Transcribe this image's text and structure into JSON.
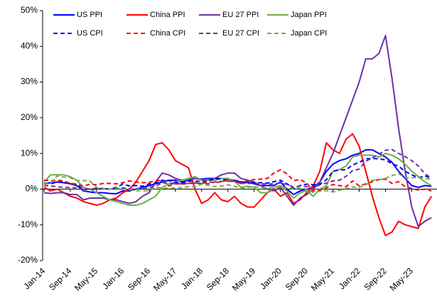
{
  "chart_data": {
    "type": "line",
    "categories": [
      "Jan-14",
      null,
      null,
      null,
      "Sep-14",
      null,
      null,
      null,
      "May-15",
      null,
      null,
      null,
      "Jan-16",
      null,
      null,
      null,
      "Sep-16",
      null,
      null,
      null,
      "May-17",
      null,
      null,
      null,
      "Jan-18",
      null,
      null,
      null,
      "Sep-18",
      null,
      null,
      null,
      "May-19",
      null,
      null,
      null,
      "Jan-20",
      null,
      null,
      null,
      "Sep-20",
      null,
      null,
      null,
      "May-21",
      null,
      null,
      null,
      "Jan-22",
      null,
      null,
      null,
      "Sep-22",
      null,
      null,
      null,
      "May-23",
      null,
      null,
      null
    ],
    "ylim": [
      -20,
      50
    ],
    "yticks": [
      {
        "value": -20,
        "label": "-20%"
      },
      {
        "value": -10,
        "label": "-10%"
      },
      {
        "value": 0,
        "label": "0%"
      },
      {
        "value": 10,
        "label": "10%"
      },
      {
        "value": 20,
        "label": "20%"
      },
      {
        "value": 30,
        "label": "30%"
      },
      {
        "value": 40,
        "label": "40%"
      },
      {
        "value": 50,
        "label": "50%"
      }
    ],
    "grid": false,
    "legend": "top",
    "series": [
      {
        "name": "US PPI",
        "color": "#0000ff",
        "dashed": false,
        "values": [
          1.5,
          1.8,
          2,
          1.8,
          1.5,
          1,
          -0.5,
          -0.8,
          -1,
          -1,
          -1.2,
          -1.3,
          -0.5,
          -0.5,
          0,
          0.5,
          1,
          1.5,
          2,
          2.5,
          2.5,
          2,
          2.5,
          3,
          2.8,
          3,
          3,
          3,
          2.8,
          2.5,
          2,
          2,
          1.5,
          1,
          1,
          1,
          2,
          0,
          -1.5,
          -0.5,
          0,
          0.5,
          2,
          5,
          7,
          8,
          8.5,
          9.5,
          10,
          11,
          11,
          10,
          9,
          7.5,
          5,
          3,
          1,
          0.5,
          1,
          0.8
        ]
      },
      {
        "name": "China PPI",
        "color": "#ff0000",
        "dashed": false,
        "values": [
          0.5,
          -0.5,
          0,
          -1,
          -2,
          -2.5,
          -3.5,
          -4,
          -4.5,
          -4,
          -3,
          -2.5,
          -1,
          0,
          2,
          5,
          8,
          12.5,
          13,
          11,
          8,
          7,
          6,
          0,
          -4,
          -3,
          -1,
          -3,
          -3.5,
          -2,
          -4,
          -5,
          -5,
          -3,
          -1,
          0,
          -2,
          -1,
          -4,
          -3,
          -1,
          1,
          5,
          13,
          11,
          10,
          14,
          15.5,
          12,
          5,
          -2,
          -8,
          -13,
          -12,
          -9,
          -10,
          -10.5,
          -11,
          -5,
          -2
        ]
      },
      {
        "name": "EU 27 PPI",
        "color": "#7030a0",
        "dashed": false,
        "values": [
          -1,
          -1.2,
          -1,
          -1,
          -1.5,
          -1.5,
          -3,
          -2.5,
          -2.5,
          -2.5,
          -3,
          -3,
          -3.5,
          -4,
          -3.5,
          -2,
          -1,
          2,
          4.5,
          4,
          3,
          2.5,
          3,
          3,
          2.5,
          2.5,
          3,
          4,
          4.5,
          4.5,
          3,
          2.5,
          2,
          1,
          0,
          -0.5,
          0.5,
          -2,
          -4.5,
          -2.5,
          -1.5,
          0,
          2,
          6,
          10,
          15,
          20,
          25,
          30,
          36.5,
          36.5,
          38,
          43,
          31,
          17,
          5,
          -5,
          -10.5,
          -9,
          -8
        ]
      },
      {
        "name": "Japan PPI",
        "color": "#70ad47",
        "dashed": false,
        "values": [
          2,
          4,
          4,
          4,
          3.5,
          2.5,
          0.5,
          0,
          -1,
          -2,
          -3,
          -3.5,
          -4,
          -4.5,
          -4.5,
          -4,
          -3,
          -2,
          0.5,
          1.5,
          2,
          2.5,
          3,
          3.5,
          2.5,
          2.5,
          2.5,
          3,
          3,
          2.3,
          0.5,
          0.8,
          0.5,
          -1,
          -1,
          0.5,
          1,
          -0.5,
          -2.5,
          -1,
          -0.5,
          -2,
          0,
          1,
          5,
          5.5,
          6.5,
          9,
          9.5,
          9.5,
          9.5,
          9,
          10,
          9.5,
          8.5,
          7,
          5,
          3.5,
          2,
          1
        ]
      },
      {
        "name": "US CPI",
        "color": "#0000ff",
        "dashed": true,
        "values": [
          1.6,
          1.5,
          2,
          2,
          1.7,
          1.3,
          -0.1,
          0,
          0,
          0.2,
          0,
          0.5,
          1.4,
          0.9,
          1,
          0.8,
          1.5,
          1.7,
          2.5,
          2.4,
          1.9,
          1.7,
          2.2,
          2.2,
          2.1,
          2.4,
          2.8,
          2.9,
          2.3,
          2.2,
          1.6,
          1.9,
          1.8,
          1.8,
          1.7,
          2.1,
          2.5,
          1.5,
          0.1,
          1,
          1.4,
          1.2,
          1.4,
          2.6,
          5,
          5.4,
          5.4,
          6.8,
          7.5,
          8.5,
          8.6,
          8.5,
          8.2,
          7.1,
          6.4,
          5,
          4,
          3.2,
          3.7,
          3.1
        ]
      },
      {
        "name": "China CPI",
        "color": "#ff0000",
        "dashed": true,
        "values": [
          2.5,
          2.4,
          2.5,
          2.3,
          1.6,
          1.4,
          0.8,
          1.4,
          1.2,
          1.6,
          1.6,
          1.5,
          1.8,
          2.3,
          2,
          1.8,
          1.9,
          2.3,
          2.5,
          0.9,
          1.5,
          1.4,
          1.6,
          1.7,
          1.5,
          2.1,
          1.8,
          2.1,
          2.5,
          2.2,
          1.7,
          2.3,
          2.7,
          2.8,
          3,
          4.5,
          5.4,
          4.3,
          2.4,
          2.7,
          1.7,
          -0.5,
          -0.3,
          0.4,
          1.3,
          1,
          0.7,
          2.3,
          0.9,
          1.5,
          2.1,
          2.7,
          2.8,
          1.6,
          2.1,
          0.7,
          0.2,
          -0.3,
          0,
          -0.5
        ]
      },
      {
        "name": "EU 27 CPI",
        "color": "#7030a0",
        "dashed": true,
        "values": [
          1,
          0.9,
          0.7,
          0.5,
          0.4,
          0.4,
          -0.1,
          0,
          0.3,
          0.2,
          0,
          0.2,
          0.4,
          0,
          0,
          0.3,
          0.5,
          0.8,
          1.8,
          1.6,
          1.5,
          1.5,
          1.6,
          1.7,
          1.6,
          1.5,
          2,
          2.2,
          2.2,
          2.2,
          1.6,
          1.6,
          1.6,
          1.5,
          1.4,
          1.5,
          1.7,
          1.3,
          0.6,
          0.9,
          0.7,
          0.3,
          1.2,
          1.7,
          2.3,
          2.5,
          3.6,
          5.2,
          5.6,
          7.8,
          8.8,
          9.8,
          10.9,
          11.1,
          10,
          9.1,
          8,
          6.5,
          4.3,
          3.1
        ]
      },
      {
        "name": "Japan CPI",
        "color": "#70ad47",
        "dashed": true,
        "values": [
          1.4,
          1.6,
          3.7,
          3.4,
          3.2,
          2.4,
          2.4,
          2.3,
          0.5,
          0.2,
          0,
          0.3,
          0,
          -0.1,
          -0.5,
          -0.4,
          -0.5,
          0.5,
          0.4,
          0.2,
          0.4,
          0.4,
          0.7,
          0.6,
          1.4,
          1.1,
          0.7,
          0.9,
          1.2,
          0.8,
          0.2,
          0.5,
          0.7,
          0.5,
          0.2,
          0.5,
          0.7,
          0.4,
          0.1,
          0.3,
          0,
          -0.9,
          -0.6,
          -0.4,
          -0.8,
          -0.3,
          0.2,
          0.6,
          0.5,
          1.2,
          2.5,
          2.6,
          3,
          3.8,
          4.3,
          3.2,
          3.2,
          3.3,
          3,
          2.8
        ]
      }
    ]
  }
}
